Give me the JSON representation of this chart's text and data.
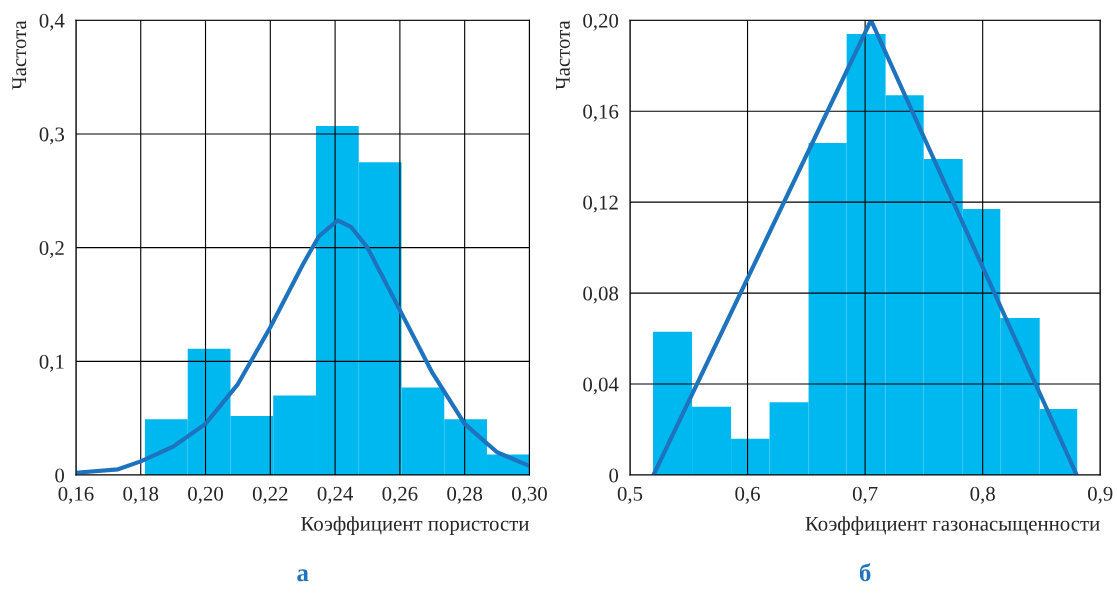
{
  "chart_data": [
    {
      "type": "histogram",
      "xlabel": "Коэффициент пористости",
      "ylabel": "Частота",
      "annotations": [
        "а"
      ],
      "color": "#00b8f0",
      "bins": [
        0.1813,
        0.1945,
        0.2077,
        0.2209,
        0.2341,
        0.2473,
        0.2605,
        0.2737,
        0.2869,
        0.3001
      ],
      "values": [
        0.049,
        0.111,
        0.052,
        0.07,
        0.307,
        0.275,
        0.077,
        0.049,
        0.018
      ],
      "series": [
        {
          "type": "line",
          "color": "#1e73be",
          "x": [
            0.16,
            0.173,
            0.18,
            0.19,
            0.2,
            0.21,
            0.22,
            0.23,
            0.235,
            0.2408,
            0.245,
            0.25,
            0.26,
            0.27,
            0.28,
            0.29,
            0.3
          ],
          "values": [
            0.002,
            0.005,
            0.012,
            0.025,
            0.045,
            0.08,
            0.13,
            0.185,
            0.21,
            0.224,
            0.218,
            0.2,
            0.145,
            0.09,
            0.045,
            0.02,
            0.008
          ]
        }
      ],
      "xlim": [
        0.16,
        0.3
      ],
      "ylim": [
        0,
        0.4
      ],
      "xticks": [
        {
          "value": 0.16,
          "label": "0,16"
        },
        {
          "value": 0.18,
          "label": "0,18"
        },
        {
          "value": 0.2,
          "label": "0,20"
        },
        {
          "value": 0.22,
          "label": "0,22"
        },
        {
          "value": 0.24,
          "label": "0,24"
        },
        {
          "value": 0.26,
          "label": "0,26"
        },
        {
          "value": 0.28,
          "label": "0,28"
        },
        {
          "value": 0.3,
          "label": "0,30"
        }
      ],
      "yticks": [
        0,
        {
          "value": 0.1,
          "label": "0,1"
        },
        {
          "value": 0.2,
          "label": "0,2"
        },
        {
          "value": 0.3,
          "label": "0,3"
        },
        {
          "value": 0.4,
          "label": "0,4"
        }
      ],
      "grid": true,
      "legend": false
    },
    {
      "type": "histogram",
      "xlabel": "Коэффициент газонасыщенности",
      "ylabel": "Частота",
      "annotations": [
        "б"
      ],
      "color": "#00b8f0",
      "bins": [
        0.5196,
        0.5528,
        0.586,
        0.6187,
        0.6519,
        0.6843,
        0.7174,
        0.7498,
        0.783,
        0.815,
        0.8485,
        0.8804
      ],
      "values": [
        0.063,
        0.03,
        0.016,
        0.032,
        0.146,
        0.194,
        0.167,
        0.139,
        0.117,
        0.069,
        0.029
      ],
      "series": [
        {
          "type": "line",
          "color": "#1e73be",
          "x": [
            0.52,
            0.705,
            0.88
          ],
          "values": [
            0,
            0.2,
            0
          ]
        }
      ],
      "xlim": [
        0.5,
        0.9
      ],
      "ylim": [
        0,
        0.2
      ],
      "xticks": [
        {
          "value": 0.5,
          "label": "0,5"
        },
        {
          "value": 0.6,
          "label": "0,6"
        },
        {
          "value": 0.7,
          "label": "0,7"
        },
        {
          "value": 0.8,
          "label": "0,8"
        },
        {
          "value": 0.9,
          "label": "0,9"
        }
      ],
      "yticks": [
        0,
        {
          "value": 0.04,
          "label": "0,04"
        },
        {
          "value": 0.08,
          "label": "0,08"
        },
        {
          "value": 0.12,
          "label": "0,12"
        },
        {
          "value": 0.16,
          "label": "0,16"
        },
        {
          "value": 0.2,
          "label": "0,20"
        }
      ],
      "grid": true,
      "legend": false
    }
  ]
}
